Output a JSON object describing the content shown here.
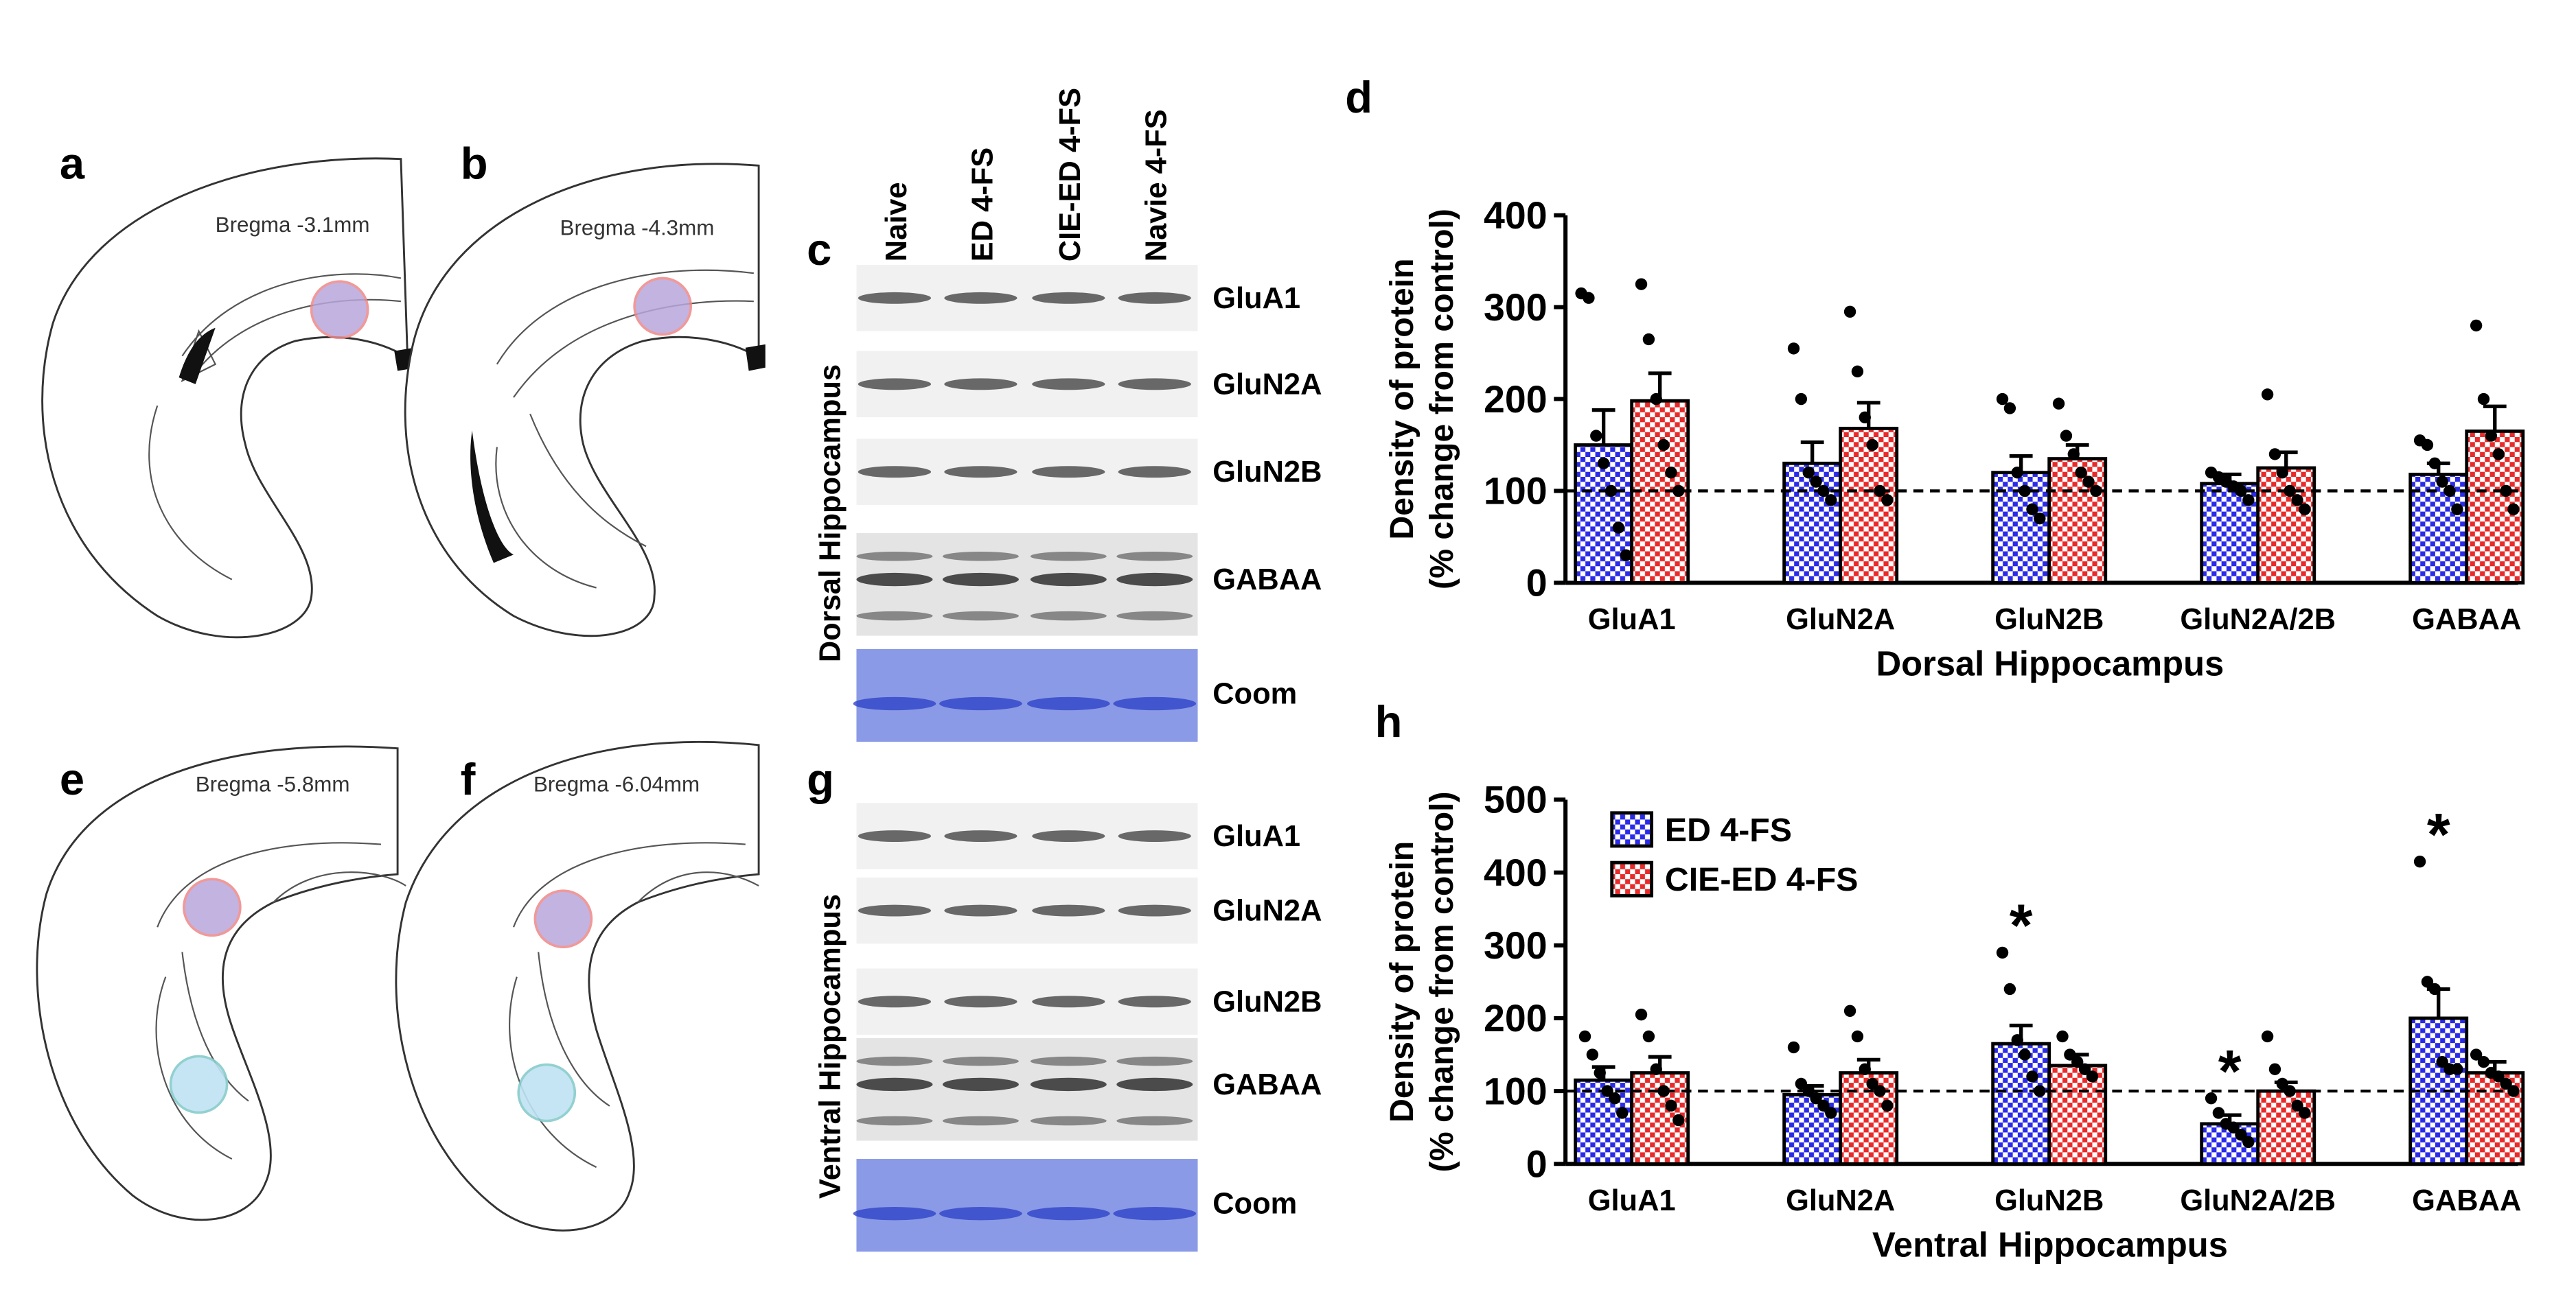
{
  "panels": {
    "a": "a",
    "b": "b",
    "c": "c",
    "d": "d",
    "e": "e",
    "f": "f",
    "g": "g",
    "h": "h"
  },
  "sections": [
    "Bregma -3.1mm",
    "Bregma -4.3mm",
    "Bregma -5.8mm",
    "Bregma -6.04mm"
  ],
  "blot": {
    "lanes": [
      "Naive",
      "ED 4-FS",
      "CIE-ED 4-FS",
      "Navie 4-FS"
    ],
    "dorsal_title": "Dorsal Hippocampus",
    "ventral_title": "Ventral Hippocampus",
    "dorsal_rows": [
      "GluA1",
      "GluN2A",
      "GluN2B",
      "GABAA",
      "Coom"
    ],
    "ventral_rows": [
      "GluA1",
      "GluN2A",
      "GluN2B",
      "GABAA",
      "Coom"
    ]
  },
  "chart_data": [
    {
      "type": "bar",
      "y_label": [
        "Density of protein",
        "(% change from control)"
      ],
      "x_label": "Dorsal Hippocampus",
      "categories": [
        "GluA1",
        "GluN2A",
        "GluN2B",
        "GluN2A/2B",
        "GABAA"
      ],
      "ylim": [
        0,
        400
      ],
      "yticks": [
        0,
        100,
        200,
        300,
        400
      ],
      "reference_line": 100,
      "legend": false,
      "series": [
        {
          "name": "ED 4-FS",
          "color": "#2a2ae8",
          "values": [
            150,
            130,
            120,
            108,
            118
          ],
          "errors": [
            38,
            23,
            18,
            10,
            12
          ],
          "points": [
            [
              315,
              310,
              160,
              130,
              100,
              60,
              30
            ],
            [
              255,
              200,
              120,
              110,
              100,
              90
            ],
            [
              200,
              190,
              120,
              100,
              80,
              70
            ],
            [
              120,
              115,
              110,
              105,
              100,
              90
            ],
            [
              155,
              150,
              130,
              110,
              100,
              80
            ]
          ]
        },
        {
          "name": "CIE-ED 4-FS",
          "color": "#e82a2a",
          "values": [
            198,
            168,
            135,
            125,
            165
          ],
          "errors": [
            30,
            28,
            15,
            17,
            27
          ],
          "points": [
            [
              325,
              265,
              200,
              150,
              120,
              100
            ],
            [
              295,
              230,
              180,
              150,
              100,
              90
            ],
            [
              195,
              160,
              140,
              120,
              110,
              100
            ],
            [
              205,
              140,
              120,
              100,
              90,
              80
            ],
            [
              280,
              200,
              160,
              140,
              100,
              80
            ]
          ]
        }
      ]
    },
    {
      "type": "bar",
      "y_label": [
        "Density of protein",
        "(% change from control)"
      ],
      "x_label": "Ventral Hippocampus",
      "categories": [
        "GluA1",
        "GluN2A",
        "GluN2B",
        "GluN2A/2B",
        "GABAA"
      ],
      "ylim": [
        0,
        500
      ],
      "yticks": [
        0,
        100,
        200,
        300,
        400,
        500
      ],
      "reference_line": 100,
      "legend": "upper left",
      "annotations": [
        {
          "text": "*",
          "series": 0,
          "category": 2
        },
        {
          "text": "*",
          "series": 0,
          "category": 3
        },
        {
          "text": "*",
          "series": 0,
          "category": 4
        }
      ],
      "series": [
        {
          "name": "ED 4-FS",
          "color": "#2a2ae8",
          "values": [
            115,
            95,
            165,
            55,
            200
          ],
          "errors": [
            18,
            12,
            25,
            12,
            40
          ],
          "points": [
            [
              175,
              150,
              125,
              100,
              90,
              70
            ],
            [
              160,
              110,
              100,
              90,
              80,
              70
            ],
            [
              290,
              240,
              170,
              150,
              120,
              100
            ],
            [
              90,
              70,
              55,
              50,
              40,
              30
            ],
            [
              415,
              250,
              240,
              140,
              130,
              130
            ]
          ]
        },
        {
          "name": "CIE-ED 4-FS",
          "color": "#e82a2a",
          "values": [
            125,
            125,
            135,
            100,
            125
          ],
          "errors": [
            22,
            18,
            15,
            12,
            15
          ],
          "points": [
            [
              205,
              175,
              130,
              100,
              80,
              60
            ],
            [
              210,
              175,
              130,
              110,
              100,
              80
            ],
            [
              175,
              150,
              140,
              130,
              120
            ],
            [
              175,
              130,
              110,
              100,
              80,
              70
            ],
            [
              150,
              140,
              125,
              120,
              110,
              100
            ]
          ]
        }
      ]
    }
  ]
}
